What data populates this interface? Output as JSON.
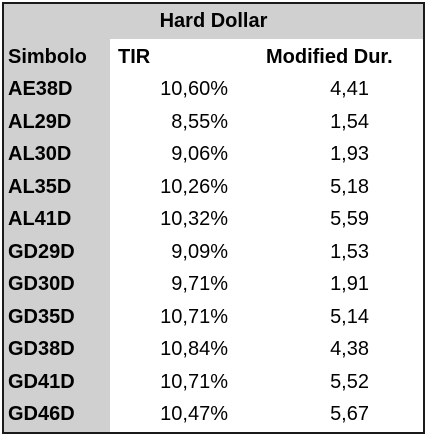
{
  "table": {
    "title": "Hard Dollar",
    "headers": {
      "symbol": "Simbolo",
      "tir": "TIR",
      "duration": "Modified Dur."
    },
    "rows": [
      {
        "symbol": "AE38D",
        "tir": "10,60%",
        "duration": "4,41"
      },
      {
        "symbol": "AL29D",
        "tir": "8,55%",
        "duration": "1,54"
      },
      {
        "symbol": "AL30D",
        "tir": "9,06%",
        "duration": "1,93"
      },
      {
        "symbol": "AL35D",
        "tir": "10,26%",
        "duration": "5,18"
      },
      {
        "symbol": "AL41D",
        "tir": "10,32%",
        "duration": "5,59"
      },
      {
        "symbol": "GD29D",
        "tir": "9,09%",
        "duration": "1,53"
      },
      {
        "symbol": "GD30D",
        "tir": "9,71%",
        "duration": "1,91"
      },
      {
        "symbol": "GD35D",
        "tir": "10,71%",
        "duration": "5,14"
      },
      {
        "symbol": "GD38D",
        "tir": "10,84%",
        "duration": "4,38"
      },
      {
        "symbol": "GD41D",
        "tir": "10,71%",
        "duration": "5,52"
      },
      {
        "symbol": "GD46D",
        "tir": "10,47%",
        "duration": "5,67"
      }
    ]
  },
  "colors": {
    "header_fill": "#d0d0d0",
    "border": "#1a1a1a",
    "background": "#ffffff"
  }
}
